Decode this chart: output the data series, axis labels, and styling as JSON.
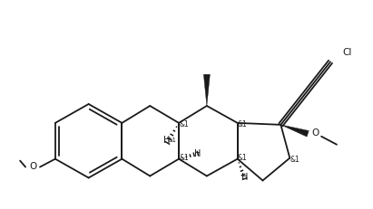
{
  "bg_color": "#ffffff",
  "line_color": "#1a1a1a",
  "line_width": 1.3,
  "font_size": 6.5,
  "figsize": [
    4.11,
    2.31
  ],
  "dpi": 100,
  "xlim": [
    0,
    411
  ],
  "ylim": [
    0,
    231
  ]
}
